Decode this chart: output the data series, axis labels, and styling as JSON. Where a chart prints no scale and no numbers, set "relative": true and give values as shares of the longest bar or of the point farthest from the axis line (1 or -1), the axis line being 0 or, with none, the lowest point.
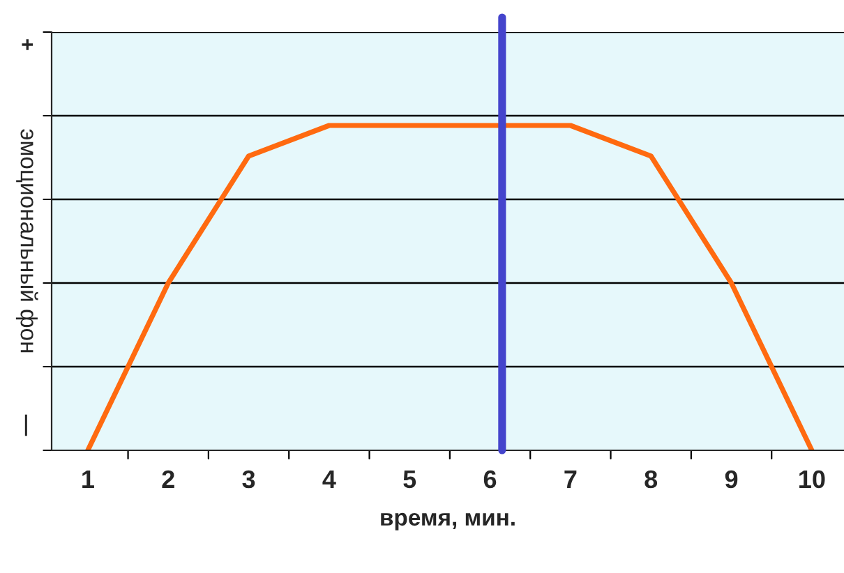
{
  "chart_data": {
    "type": "line",
    "relative": true,
    "xlabel": "время, мин.",
    "ylabel": "эмоциональный фон",
    "categories": [
      "1",
      "2",
      "3",
      "4",
      "5",
      "6",
      "7",
      "8",
      "9",
      "10"
    ],
    "series": [
      {
        "color": "#ff6a10",
        "values": [
          0,
          0.515,
          0.906,
          1,
          1,
          1,
          1,
          0.906,
          0.515,
          0
        ]
      }
    ],
    "ref_lines": [
      {
        "axis": "x",
        "value": "6",
        "color": "#4444cc"
      }
    ],
    "annotations": [
      "+",
      "—"
    ],
    "grid": "y",
    "legend": false,
    "marker": "none",
    "line_style": "solid"
  }
}
